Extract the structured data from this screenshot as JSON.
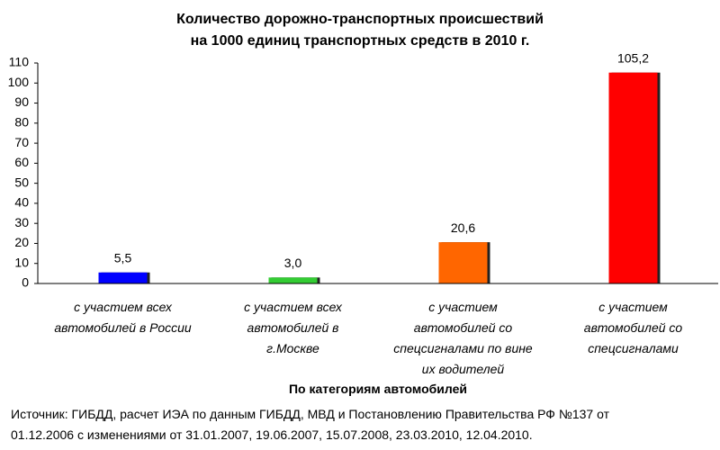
{
  "chart_data": {
    "type": "bar",
    "title": "Количество дорожно-транспортных происшествий\nна 1000 единиц транспортных средств в 2010 г.",
    "categories": [
      "с участием всех автомобилей в России",
      "с участием всех автомобилей в г.Москве",
      "с участием автомобилей со спецсигналами по вине их водителей",
      "с участием автомобилей со спецсигналами"
    ],
    "values": [
      5.5,
      3.0,
      20.6,
      105.2
    ],
    "value_labels": [
      "5,5",
      "3,0",
      "20,6",
      "105,2"
    ],
    "colors": [
      "#0000ff",
      "#33cc33",
      "#ff6600",
      "#ff0000"
    ],
    "ylim": [
      0,
      110
    ],
    "yticks": [
      0,
      10,
      20,
      30,
      40,
      50,
      60,
      70,
      80,
      90,
      100,
      110
    ],
    "grid": false,
    "xlabel": "По категориям автомобилей",
    "source": "Источник: ГИБДД, расчет ИЭА по данным ГИБДД, МВД и Постановлению Правительства РФ №137 от\n01.12.2006 с изменениями от 31.01.2007, 19.06.2007, 15.07.2008, 23.03.2010, 12.04.2010."
  }
}
